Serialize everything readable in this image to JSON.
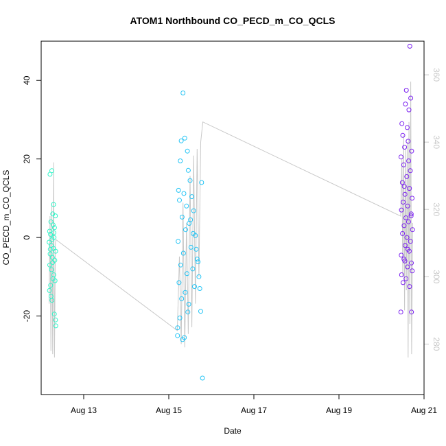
{
  "chart_data": {
    "type": "scatter",
    "title": "ATOM1 Northbound CO_PECD_m_CO_QCLS",
    "xlabel": "Date",
    "ylabel": "CO_PECD_m_CO_QCLS",
    "x_axis": {
      "type": "date",
      "range": [
        "2016-08-12T00:00",
        "2016-08-21T00:00"
      ],
      "ticks": [
        {
          "value": "2016-08-13",
          "label": "Aug 13"
        },
        {
          "value": "2016-08-15",
          "label": "Aug 15"
        },
        {
          "value": "2016-08-17",
          "label": "Aug 17"
        },
        {
          "value": "2016-08-19",
          "label": "Aug 19"
        },
        {
          "value": "2016-08-21",
          "label": "Aug 21"
        }
      ]
    },
    "y_axis_left": {
      "range": [
        -40,
        50
      ],
      "ticks": [
        -20,
        0,
        20,
        40
      ],
      "tick_labels": [
        "-20",
        "0",
        "20",
        "40"
      ]
    },
    "y_axis_right": {
      "range": [
        265,
        370
      ],
      "ticks": [
        280,
        300,
        320,
        340,
        360
      ],
      "tick_labels": [
        "280",
        "300",
        "320",
        "340",
        "360"
      ],
      "color": "#c8c8c8"
    },
    "colors": {
      "group1_points": "#2ef5c8",
      "group2_points": "#22c4f5",
      "group3_points": "#7a1ff0",
      "right_series_line": "#c8c8c8",
      "frame": "#000000"
    },
    "scatter_groups": [
      {
        "time_range": [
          "2016-08-12T04:12",
          "2016-08-12T08:24"
        ],
        "color": "#2ef5c8",
        "points": [
          {
            "x": "2016-08-12T05:00",
            "y": 16.1
          },
          {
            "x": "2016-08-12T06:00",
            "y": 17.0
          },
          {
            "x": "2016-08-12T07:00",
            "y": 8.4
          },
          {
            "x": "2016-08-12T06:30",
            "y": 6.0
          },
          {
            "x": "2016-08-12T08:00",
            "y": 5.5
          },
          {
            "x": "2016-08-12T05:30",
            "y": 4.0
          },
          {
            "x": "2016-08-12T06:45",
            "y": 3.2
          },
          {
            "x": "2016-08-12T07:30",
            "y": 2.5
          },
          {
            "x": "2016-08-12T04:45",
            "y": 1.6
          },
          {
            "x": "2016-08-12T05:15",
            "y": 0.8
          },
          {
            "x": "2016-08-12T07:15",
            "y": 0.0
          },
          {
            "x": "2016-08-12T06:10",
            "y": -0.5
          },
          {
            "x": "2016-08-12T04:30",
            "y": -1.2
          },
          {
            "x": "2016-08-12T05:40",
            "y": -2.0
          },
          {
            "x": "2016-08-12T06:55",
            "y": -2.8
          },
          {
            "x": "2016-08-12T08:10",
            "y": -3.5
          },
          {
            "x": "2016-08-12T05:05",
            "y": -4.2
          },
          {
            "x": "2016-08-12T06:20",
            "y": -5.1
          },
          {
            "x": "2016-08-12T07:40",
            "y": -5.8
          },
          {
            "x": "2016-08-12T04:50",
            "y": -7.0
          },
          {
            "x": "2016-08-12T05:50",
            "y": -8.2
          },
          {
            "x": "2016-08-12T07:05",
            "y": -9.5
          },
          {
            "x": "2016-08-12T06:40",
            "y": -10.5
          },
          {
            "x": "2016-08-12T07:50",
            "y": -11.0
          },
          {
            "x": "2016-08-12T05:20",
            "y": -12.2
          },
          {
            "x": "2016-08-12T04:40",
            "y": -13.5
          },
          {
            "x": "2016-08-12T05:35",
            "y": -15.0
          },
          {
            "x": "2016-08-12T06:05",
            "y": -16.0
          },
          {
            "x": "2016-08-12T07:25",
            "y": -19.5
          },
          {
            "x": "2016-08-12T08:05",
            "y": -21.0
          },
          {
            "x": "2016-08-12T08:15",
            "y": -22.5
          },
          {
            "x": "2016-08-12T07:10",
            "y": 1.2
          },
          {
            "x": "2016-08-12T06:25",
            "y": -6.4
          },
          {
            "x": "2016-08-12T05:10",
            "y": -3.0
          }
        ],
        "right_series": [
          {
            "x": "2016-08-12T04:30",
            "y": 292
          },
          {
            "x": "2016-08-12T05:00",
            "y": 318
          },
          {
            "x": "2016-08-12T05:30",
            "y": 278
          },
          {
            "x": "2016-08-12T06:00",
            "y": 322
          },
          {
            "x": "2016-08-12T06:30",
            "y": 277
          },
          {
            "x": "2016-08-12T07:00",
            "y": 334
          },
          {
            "x": "2016-08-12T07:30",
            "y": 276
          },
          {
            "x": "2016-08-12T08:00",
            "y": 310
          },
          {
            "x": "2016-08-12T08:24",
            "y": 311
          }
        ]
      },
      {
        "time_range": [
          "2016-08-15T04:48",
          "2016-08-15T19:12"
        ],
        "color": "#22c4f5",
        "points": [
          {
            "x": "2016-08-15T08:00",
            "y": 36.8
          },
          {
            "x": "2016-08-15T09:00",
            "y": 25.3
          },
          {
            "x": "2016-08-15T07:00",
            "y": 24.6
          },
          {
            "x": "2016-08-15T10:30",
            "y": 22.0
          },
          {
            "x": "2016-08-15T06:30",
            "y": 19.5
          },
          {
            "x": "2016-08-15T11:00",
            "y": 17.1
          },
          {
            "x": "2016-08-15T12:00",
            "y": 14.5
          },
          {
            "x": "2016-08-15T05:30",
            "y": 12.0
          },
          {
            "x": "2016-08-15T08:30",
            "y": 11.2
          },
          {
            "x": "2016-08-15T13:00",
            "y": 10.4
          },
          {
            "x": "2016-08-15T06:00",
            "y": 9.5
          },
          {
            "x": "2016-08-15T10:00",
            "y": 8.0
          },
          {
            "x": "2016-08-15T14:00",
            "y": 6.8
          },
          {
            "x": "2016-08-15T07:30",
            "y": 5.2
          },
          {
            "x": "2016-08-15T11:30",
            "y": 3.6
          },
          {
            "x": "2016-08-15T09:30",
            "y": 2.0
          },
          {
            "x": "2016-08-15T15:00",
            "y": 0.5
          },
          {
            "x": "2016-08-15T05:15",
            "y": -1.0
          },
          {
            "x": "2016-08-15T12:30",
            "y": -2.5
          },
          {
            "x": "2016-08-15T08:15",
            "y": -4.0
          },
          {
            "x": "2016-08-15T16:00",
            "y": -5.5
          },
          {
            "x": "2016-08-15T06:45",
            "y": -7.0
          },
          {
            "x": "2016-08-15T13:30",
            "y": -8.0
          },
          {
            "x": "2016-08-15T10:15",
            "y": -9.2
          },
          {
            "x": "2016-08-15T17:00",
            "y": -10.0
          },
          {
            "x": "2016-08-15T05:45",
            "y": -11.5
          },
          {
            "x": "2016-08-15T14:30",
            "y": -12.5
          },
          {
            "x": "2016-08-15T09:15",
            "y": -14.0
          },
          {
            "x": "2016-08-15T07:15",
            "y": -15.6
          },
          {
            "x": "2016-08-15T11:15",
            "y": -17.0
          },
          {
            "x": "2016-08-15T18:00",
            "y": -18.8
          },
          {
            "x": "2016-08-15T06:15",
            "y": -20.5
          },
          {
            "x": "2016-08-15T05:00",
            "y": -23.0
          },
          {
            "x": "2016-08-15T04:55",
            "y": -25.0
          },
          {
            "x": "2016-08-15T08:45",
            "y": -25.5
          },
          {
            "x": "2016-08-15T07:45",
            "y": -26.0
          },
          {
            "x": "2016-08-15T19:00",
            "y": -35.8
          },
          {
            "x": "2016-08-15T15:30",
            "y": -3.0
          },
          {
            "x": "2016-08-15T12:15",
            "y": 4.5
          },
          {
            "x": "2016-08-15T16:30",
            "y": -6.2
          },
          {
            "x": "2016-08-15T13:45",
            "y": 1.0
          },
          {
            "x": "2016-08-15T17:30",
            "y": -13.0
          },
          {
            "x": "2016-08-15T18:30",
            "y": 14.0
          },
          {
            "x": "2016-08-15T10:45",
            "y": -19.0
          }
        ],
        "right_series": [
          {
            "x": "2016-08-15T04:48",
            "y": 284
          },
          {
            "x": "2016-08-15T06:00",
            "y": 306
          },
          {
            "x": "2016-08-15T07:00",
            "y": 280
          },
          {
            "x": "2016-08-15T08:00",
            "y": 322
          },
          {
            "x": "2016-08-15T09:00",
            "y": 279
          },
          {
            "x": "2016-08-15T10:00",
            "y": 316
          },
          {
            "x": "2016-08-15T11:00",
            "y": 283
          },
          {
            "x": "2016-08-15T12:00",
            "y": 330
          },
          {
            "x": "2016-08-15T13:00",
            "y": 285
          },
          {
            "x": "2016-08-15T14:00",
            "y": 336
          },
          {
            "x": "2016-08-15T15:00",
            "y": 292
          },
          {
            "x": "2016-08-15T16:00",
            "y": 338
          },
          {
            "x": "2016-08-15T17:00",
            "y": 300
          },
          {
            "x": "2016-08-15T18:00",
            "y": 340
          },
          {
            "x": "2016-08-15T19:12",
            "y": 346
          }
        ]
      },
      {
        "time_range": [
          "2016-08-20T10:48",
          "2016-08-20T17:36"
        ],
        "color": "#7a1ff0",
        "points": [
          {
            "x": "2016-08-20T16:00",
            "y": 48.7
          },
          {
            "x": "2016-08-20T14:00",
            "y": 37.5
          },
          {
            "x": "2016-08-20T16:30",
            "y": 35.5
          },
          {
            "x": "2016-08-20T13:30",
            "y": 34.0
          },
          {
            "x": "2016-08-20T15:30",
            "y": 32.5
          },
          {
            "x": "2016-08-20T11:30",
            "y": 29.0
          },
          {
            "x": "2016-08-20T14:30",
            "y": 28.0
          },
          {
            "x": "2016-08-20T12:00",
            "y": 26.0
          },
          {
            "x": "2016-08-20T15:00",
            "y": 24.5
          },
          {
            "x": "2016-08-20T13:00",
            "y": 23.0
          },
          {
            "x": "2016-08-20T17:00",
            "y": 22.0
          },
          {
            "x": "2016-08-20T11:00",
            "y": 20.5
          },
          {
            "x": "2016-08-20T12:30",
            "y": 18.5
          },
          {
            "x": "2016-08-20T16:15",
            "y": 17.0
          },
          {
            "x": "2016-08-20T14:15",
            "y": 15.5
          },
          {
            "x": "2016-08-20T11:45",
            "y": 14.0
          },
          {
            "x": "2016-08-20T15:45",
            "y": 12.5
          },
          {
            "x": "2016-08-20T13:15",
            "y": 11.0
          },
          {
            "x": "2016-08-20T17:15",
            "y": 10.0
          },
          {
            "x": "2016-08-20T12:15",
            "y": 9.0
          },
          {
            "x": "2016-08-20T14:45",
            "y": 8.0
          },
          {
            "x": "2016-08-20T11:15",
            "y": 7.0
          },
          {
            "x": "2016-08-20T16:45",
            "y": 6.0
          },
          {
            "x": "2016-08-20T13:45",
            "y": 5.0
          },
          {
            "x": "2016-08-20T15:15",
            "y": 4.0
          },
          {
            "x": "2016-08-20T12:45",
            "y": 3.0
          },
          {
            "x": "2016-08-20T17:30",
            "y": 2.0
          },
          {
            "x": "2016-08-20T11:50",
            "y": 1.0
          },
          {
            "x": "2016-08-20T14:20",
            "y": 0.0
          },
          {
            "x": "2016-08-20T16:20",
            "y": -1.0
          },
          {
            "x": "2016-08-20T13:20",
            "y": -2.0
          },
          {
            "x": "2016-08-20T15:40",
            "y": -3.5
          },
          {
            "x": "2016-08-20T11:10",
            "y": -4.5
          },
          {
            "x": "2016-08-20T12:40",
            "y": -5.5
          },
          {
            "x": "2016-08-20T16:50",
            "y": -6.5
          },
          {
            "x": "2016-08-20T14:40",
            "y": -7.5
          },
          {
            "x": "2016-08-20T17:20",
            "y": -8.5
          },
          {
            "x": "2016-08-20T11:20",
            "y": -9.5
          },
          {
            "x": "2016-08-20T13:50",
            "y": -10.5
          },
          {
            "x": "2016-08-20T12:10",
            "y": -11.5
          },
          {
            "x": "2016-08-20T15:50",
            "y": -12.5
          },
          {
            "x": "2016-08-20T10:55",
            "y": -19.0
          },
          {
            "x": "2016-08-20T16:55",
            "y": -19.0
          },
          {
            "x": "2016-08-20T12:50",
            "y": 13.0
          },
          {
            "x": "2016-08-20T14:50",
            "y": -3.0
          },
          {
            "x": "2016-08-20T15:20",
            "y": 19.5
          },
          {
            "x": "2016-08-20T13:10",
            "y": -6.0
          },
          {
            "x": "2016-08-20T16:40",
            "y": 5.5
          }
        ],
        "right_series": [
          {
            "x": "2016-08-20T10:48",
            "y": 318
          },
          {
            "x": "2016-08-20T11:30",
            "y": 335
          },
          {
            "x": "2016-08-20T12:00",
            "y": 300
          },
          {
            "x": "2016-08-20T12:30",
            "y": 342
          },
          {
            "x": "2016-08-20T13:00",
            "y": 290
          },
          {
            "x": "2016-08-20T13:30",
            "y": 338
          },
          {
            "x": "2016-08-20T14:00",
            "y": 296
          },
          {
            "x": "2016-08-20T14:30",
            "y": 340
          },
          {
            "x": "2016-08-20T15:00",
            "y": 276
          },
          {
            "x": "2016-08-20T15:30",
            "y": 346
          },
          {
            "x": "2016-08-20T16:00",
            "y": 286
          },
          {
            "x": "2016-08-20T16:30",
            "y": 358
          },
          {
            "x": "2016-08-20T17:00",
            "y": 277
          },
          {
            "x": "2016-08-20T17:36",
            "y": 316
          }
        ]
      }
    ],
    "grid": false,
    "legend": "none"
  }
}
